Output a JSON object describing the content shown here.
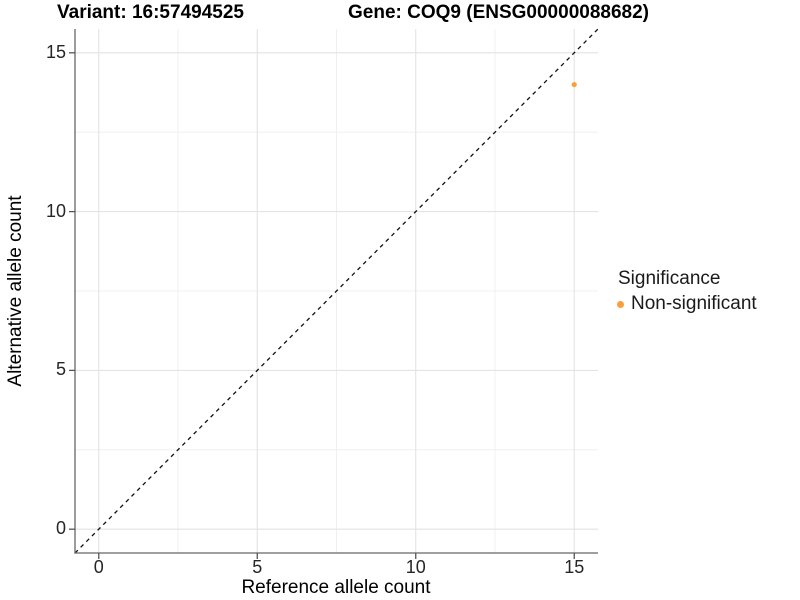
{
  "titles": {
    "variant": "Variant: 16:57494525",
    "gene": "Gene: COQ9 (ENSG00000088682)"
  },
  "axes": {
    "x": {
      "label": "Reference allele count",
      "major_ticks": [
        0,
        5,
        10,
        15
      ],
      "minor_ticks": [
        2.5,
        7.5,
        12.5
      ],
      "range": [
        -0.75,
        15.75
      ]
    },
    "y": {
      "label": "Alternative allele count",
      "major_ticks": [
        0,
        5,
        10,
        15
      ],
      "minor_ticks": [
        2.5,
        7.5,
        12.5
      ],
      "range": [
        -0.75,
        15.75
      ]
    }
  },
  "legend": {
    "title": "Significance",
    "items": [
      {
        "label": "Non-significant",
        "color": "#F9A03C"
      }
    ]
  },
  "colors": {
    "background": "#ffffff",
    "grid_major": "#E3E3E3",
    "grid_minor": "#F0F0F0",
    "axis_line": "#666666",
    "tick_mark": "#555555",
    "reference_line": "#111111",
    "point": "#F9A03C"
  },
  "chart_data": {
    "type": "scatter",
    "title": "Variant: 16:57494525    Gene: COQ9 (ENSG00000088682)",
    "xlabel": "Reference allele count",
    "ylabel": "Alternative allele count",
    "xlim": [
      -0.75,
      15.75
    ],
    "ylim": [
      -0.75,
      15.75
    ],
    "x_ticks": [
      0,
      5,
      10,
      15
    ],
    "y_ticks": [
      0,
      5,
      10,
      15
    ],
    "grid": true,
    "legend_position": "right",
    "series": [
      {
        "name": "Non-significant",
        "color": "#F9A03C",
        "points": [
          {
            "x": 15,
            "y": 14
          }
        ]
      }
    ],
    "reference_line": {
      "type": "identity",
      "slope": 1,
      "intercept": 0,
      "style": "dashed",
      "color": "#111111"
    }
  }
}
